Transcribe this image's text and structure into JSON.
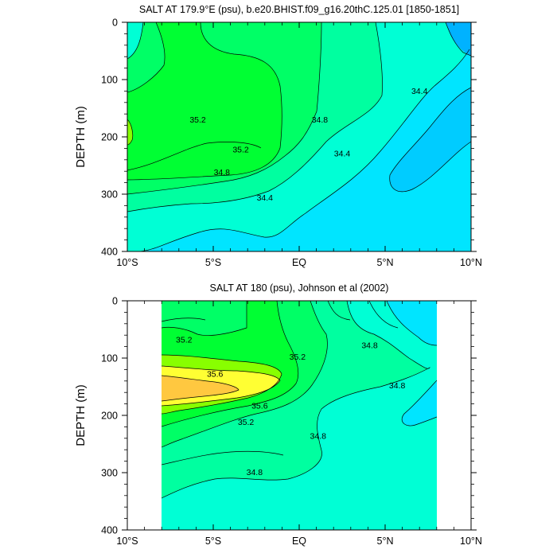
{
  "chart_data": [
    {
      "type": "contour",
      "title": "SALT AT 179.9°E (psu), b.e20.BHIST.f09_g16.20thC.125.01 [1850-1851]",
      "ylabel": "DEPTH (m)",
      "xlabel": "",
      "x_ticks": [
        "10°S",
        "5°S",
        "EQ",
        "5°N",
        "10°N"
      ],
      "x_tick_values": [
        -10,
        -5,
        0,
        5,
        10
      ],
      "y_ticks": [
        "0",
        "100",
        "200",
        "300",
        "400"
      ],
      "y_tick_values": [
        0,
        100,
        200,
        300,
        400
      ],
      "xlim": [
        -10,
        10
      ],
      "ylim": [
        400,
        0
      ],
      "contour_interval": 0.2,
      "contour_labels": [
        {
          "text": "35.2",
          "x": -5.9,
          "y": 170
        },
        {
          "text": "35.2",
          "x": -3.4,
          "y": 222
        },
        {
          "text": "34.8",
          "x": -4.5,
          "y": 262
        },
        {
          "text": "34.4",
          "x": -2.0,
          "y": 306
        },
        {
          "text": "34.8",
          "x": 1.2,
          "y": 170
        },
        {
          "text": "34.4",
          "x": 2.5,
          "y": 229
        },
        {
          "text": "34.4",
          "x": 7.0,
          "y": 120
        }
      ]
    },
    {
      "type": "contour",
      "title": "SALT AT 180 (psu), Johnson et al (2002)",
      "ylabel": "DEPTH (m)",
      "xlabel": "",
      "x_ticks": [
        "10°S",
        "5°S",
        "EQ",
        "5°N",
        "10°N"
      ],
      "x_tick_values": [
        -10,
        -5,
        0,
        5,
        10
      ],
      "y_ticks": [
        "0",
        "100",
        "200",
        "300",
        "400"
      ],
      "y_tick_values": [
        0,
        100,
        200,
        300,
        400
      ],
      "xlim": [
        -10,
        10
      ],
      "ylim": [
        400,
        0
      ],
      "data_extent_x": [
        -8,
        8
      ],
      "contour_interval": 0.2,
      "contour_labels": [
        {
          "text": "35.2",
          "x": -6.7,
          "y": 68
        },
        {
          "text": "35.6",
          "x": -4.9,
          "y": 128
        },
        {
          "text": "35.2",
          "x": -0.1,
          "y": 98
        },
        {
          "text": "35.6",
          "x": -2.3,
          "y": 183
        },
        {
          "text": "35.2",
          "x": -3.1,
          "y": 212
        },
        {
          "text": "34.8",
          "x": 1.1,
          "y": 236
        },
        {
          "text": "34.8",
          "x": 4.1,
          "y": 78
        },
        {
          "text": "34.8",
          "x": 5.7,
          "y": 148
        },
        {
          "text": "34.8",
          "x": -2.6,
          "y": 299
        }
      ]
    }
  ],
  "colors": {
    "c_34_2": "#00b2ff",
    "c_34_4": "#00e5ff",
    "c_34_6": "#00ffd5",
    "c_34_8": "#00ffa0",
    "c_35_0": "#00ff66",
    "c_35_2": "#00ff33",
    "c_35_4": "#88ff00",
    "c_35_6": "#ffff33",
    "c_35_8": "#ffc840",
    "c_36_0": "#ff9a2e"
  }
}
